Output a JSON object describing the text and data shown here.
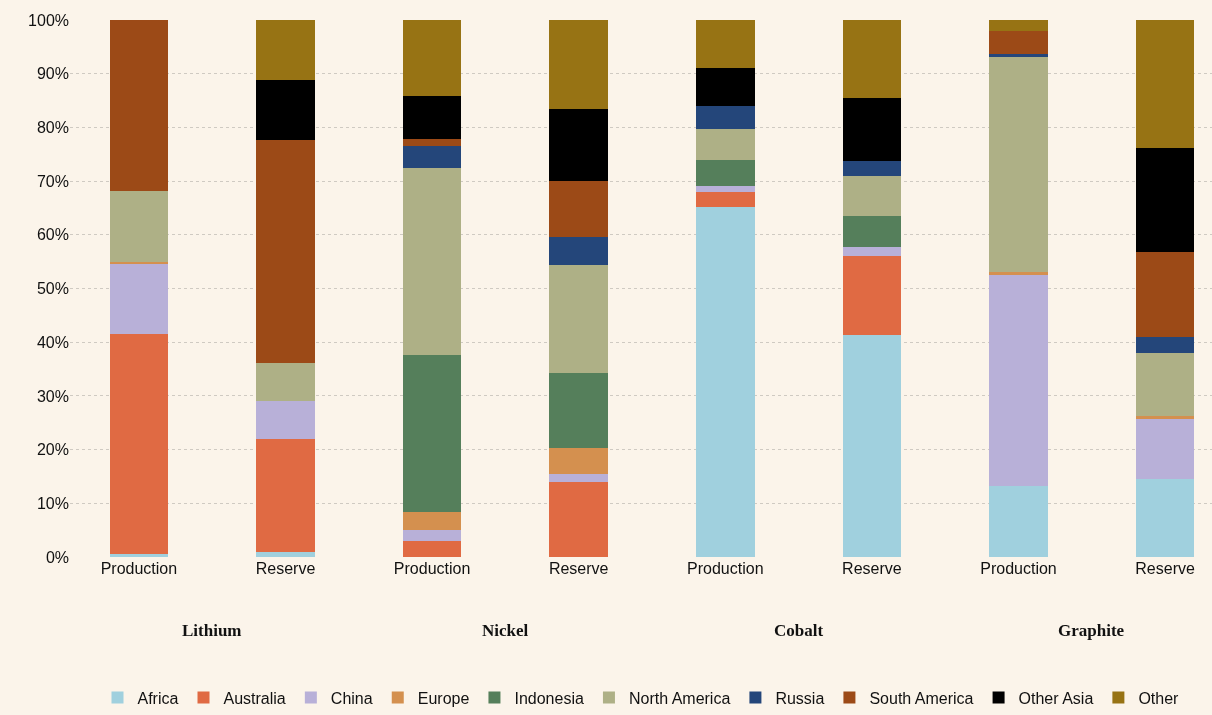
{
  "chart_data": {
    "type": "bar",
    "stacked": true,
    "grid": "y",
    "legend": "bottom",
    "categories": [
      "Production",
      "Reserve",
      "Production",
      "Reserve",
      "Production",
      "Reserve",
      "Production",
      "Reserve"
    ],
    "annotations": [
      "Lithium",
      "Nickel",
      "Cobalt",
      "Graphite"
    ],
    "ylim": [
      0,
      100
    ],
    "yticks": [
      {
        "value": 0,
        "label": "0%"
      },
      {
        "value": 10,
        "label": "10%"
      },
      {
        "value": 20,
        "label": "20%"
      },
      {
        "value": 30,
        "label": "30%"
      },
      {
        "value": 40,
        "label": "40%"
      },
      {
        "value": 50,
        "label": "50%"
      },
      {
        "value": 60,
        "label": "60%"
      },
      {
        "value": 70,
        "label": "70%"
      },
      {
        "value": 80,
        "label": "80%"
      },
      {
        "value": 90,
        "label": "90%"
      },
      {
        "value": 100,
        "label": "100%"
      }
    ],
    "series": [
      {
        "name": "Africa",
        "color": "#a0d0de",
        "values": [
          0.5,
          1,
          0,
          0,
          65.2,
          41.3,
          13.2,
          14.5
        ]
      },
      {
        "name": "Australia",
        "color": "#e06a43",
        "values": [
          41.1,
          21,
          3,
          14,
          2.8,
          14.8,
          0,
          0
        ]
      },
      {
        "name": "China",
        "color": "#b8b0d8",
        "values": [
          12.9,
          7,
          2,
          1.5,
          1,
          1.6,
          39.3,
          11.2
        ]
      },
      {
        "name": "Europe",
        "color": "#d4904f",
        "values": [
          0.4,
          0,
          3.4,
          4.8,
          0,
          0,
          0.6,
          0.5
        ]
      },
      {
        "name": "Indonesia",
        "color": "#557f5b",
        "values": [
          0,
          0,
          29.3,
          13.9,
          4.9,
          5.8,
          0,
          0
        ]
      },
      {
        "name": "North America",
        "color": "#aeb086",
        "values": [
          13.2,
          7.2,
          34.7,
          20.1,
          5.8,
          7.5,
          40,
          11.8
        ]
      },
      {
        "name": "Russia",
        "color": "#24467a",
        "values": [
          0,
          0,
          4.1,
          5.2,
          4.3,
          2.7,
          0.6,
          3
        ]
      },
      {
        "name": "South America",
        "color": "#9c4a17",
        "values": [
          31.9,
          41.5,
          1.4,
          10.6,
          0,
          0,
          4.2,
          15.8
        ]
      },
      {
        "name": "Other Asia",
        "color": "#000000",
        "values": [
          0,
          11.1,
          8,
          13.3,
          7.1,
          11.8,
          0,
          19.3
        ]
      },
      {
        "name": "Other",
        "color": "#977314",
        "values": [
          0,
          11.2,
          14.1,
          16.6,
          8.9,
          14.5,
          2.1,
          23.9
        ]
      }
    ]
  }
}
